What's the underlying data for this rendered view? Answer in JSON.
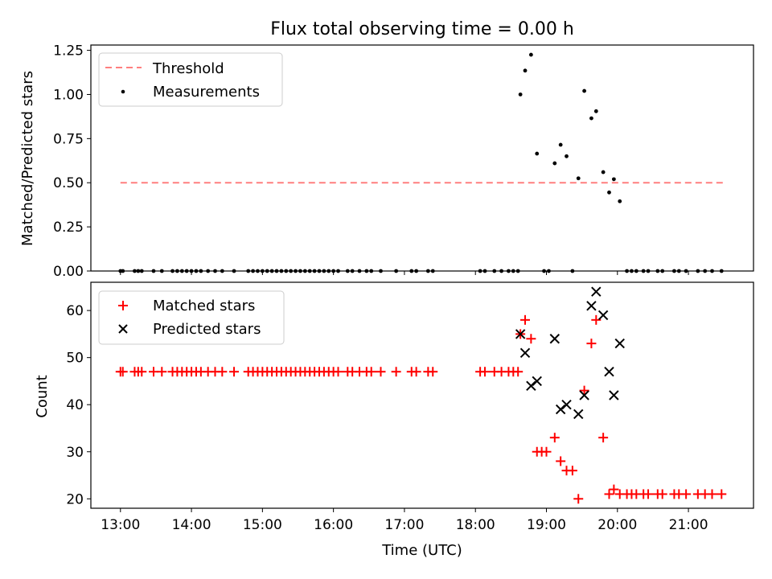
{
  "title": "Flux total observing time = 0.00 h",
  "chart_data": [
    {
      "type": "scatter",
      "panel": "top",
      "ylabel": "Matched/Predicted stars",
      "ylim": [
        0,
        1.28
      ],
      "yticks": [
        0.0,
        0.25,
        0.5,
        0.75,
        1.0,
        1.25
      ],
      "ytick_labels": [
        "0.00",
        "0.25",
        "0.50",
        "0.75",
        "1.00",
        "1.25"
      ],
      "legend_position": "upper-left",
      "threshold": {
        "name": "Threshold",
        "value": 0.5,
        "x_range": [
          "13:00",
          "21:30"
        ],
        "color": "#ff7f7f",
        "style": "dashed"
      },
      "series": [
        {
          "name": "Measurements",
          "color": "#000000",
          "marker": "dot",
          "points": [
            [
              "13:00",
              0
            ],
            [
              "13:02",
              0
            ],
            [
              "13:12",
              0
            ],
            [
              "13:15",
              0
            ],
            [
              "13:18",
              0
            ],
            [
              "13:28",
              0
            ],
            [
              "13:35",
              0
            ],
            [
              "13:44",
              0
            ],
            [
              "13:48",
              0
            ],
            [
              "13:52",
              0
            ],
            [
              "13:56",
              0
            ],
            [
              "14:00",
              0
            ],
            [
              "14:04",
              0
            ],
            [
              "14:08",
              0
            ],
            [
              "14:14",
              0
            ],
            [
              "14:20",
              0
            ],
            [
              "14:26",
              0
            ],
            [
              "14:36",
              0
            ],
            [
              "14:48",
              0
            ],
            [
              "14:52",
              0
            ],
            [
              "14:56",
              0
            ],
            [
              "15:00",
              0
            ],
            [
              "15:04",
              0
            ],
            [
              "15:08",
              0
            ],
            [
              "15:12",
              0
            ],
            [
              "15:16",
              0
            ],
            [
              "15:20",
              0
            ],
            [
              "15:24",
              0
            ],
            [
              "15:28",
              0
            ],
            [
              "15:32",
              0
            ],
            [
              "15:36",
              0
            ],
            [
              "15:40",
              0
            ],
            [
              "15:44",
              0
            ],
            [
              "15:48",
              0
            ],
            [
              "15:52",
              0
            ],
            [
              "15:56",
              0
            ],
            [
              "16:00",
              0
            ],
            [
              "16:04",
              0
            ],
            [
              "16:12",
              0
            ],
            [
              "16:16",
              0
            ],
            [
              "16:22",
              0
            ],
            [
              "16:28",
              0
            ],
            [
              "16:32",
              0
            ],
            [
              "16:40",
              0
            ],
            [
              "16:53",
              0
            ],
            [
              "17:06",
              0
            ],
            [
              "17:10",
              0
            ],
            [
              "17:20",
              0
            ],
            [
              "17:24",
              0
            ],
            [
              "18:04",
              0
            ],
            [
              "18:08",
              0
            ],
            [
              "18:16",
              0
            ],
            [
              "18:22",
              0
            ],
            [
              "18:28",
              0
            ],
            [
              "18:32",
              0
            ],
            [
              "18:36",
              0
            ],
            [
              "18:58",
              0
            ],
            [
              "19:02",
              0
            ],
            [
              "19:22",
              0
            ],
            [
              "18:38",
              1.0
            ],
            [
              "18:42",
              1.135
            ],
            [
              "18:47",
              1.225
            ],
            [
              "18:52",
              0.665
            ],
            [
              "19:07",
              0.61
            ],
            [
              "19:12",
              0.715
            ],
            [
              "19:17",
              0.65
            ],
            [
              "19:27",
              0.525
            ],
            [
              "19:32",
              1.02
            ],
            [
              "19:38",
              0.865
            ],
            [
              "19:42",
              0.905
            ],
            [
              "19:48",
              0.56
            ],
            [
              "19:53",
              0.445
            ],
            [
              "19:57",
              0.52
            ],
            [
              "20:02",
              0.395
            ],
            [
              "20:08",
              0
            ],
            [
              "20:12",
              0
            ],
            [
              "20:16",
              0
            ],
            [
              "20:22",
              0
            ],
            [
              "20:26",
              0
            ],
            [
              "20:34",
              0
            ],
            [
              "20:38",
              0
            ],
            [
              "20:48",
              0
            ],
            [
              "20:52",
              0
            ],
            [
              "20:58",
              0
            ],
            [
              "21:08",
              0
            ],
            [
              "21:14",
              0
            ],
            [
              "21:20",
              0
            ],
            [
              "21:28",
              0
            ]
          ]
        }
      ]
    },
    {
      "type": "scatter",
      "panel": "bottom",
      "xlabel": "Time (UTC)",
      "ylabel": "Count",
      "ylim": [
        18,
        66
      ],
      "yticks": [
        20,
        30,
        40,
        50,
        60
      ],
      "xlim": [
        "12:35",
        "21:55"
      ],
      "xticks": [
        "13:00",
        "14:00",
        "15:00",
        "16:00",
        "17:00",
        "18:00",
        "19:00",
        "20:00",
        "21:00"
      ],
      "legend_position": "upper-left",
      "series": [
        {
          "name": "Matched stars",
          "color": "#ff0000",
          "marker": "plus",
          "points": [
            [
              "13:00",
              47
            ],
            [
              "13:02",
              47
            ],
            [
              "13:12",
              47
            ],
            [
              "13:15",
              47
            ],
            [
              "13:18",
              47
            ],
            [
              "13:28",
              47
            ],
            [
              "13:35",
              47
            ],
            [
              "13:44",
              47
            ],
            [
              "13:48",
              47
            ],
            [
              "13:52",
              47
            ],
            [
              "13:56",
              47
            ],
            [
              "14:00",
              47
            ],
            [
              "14:04",
              47
            ],
            [
              "14:08",
              47
            ],
            [
              "14:14",
              47
            ],
            [
              "14:20",
              47
            ],
            [
              "14:26",
              47
            ],
            [
              "14:36",
              47
            ],
            [
              "14:48",
              47
            ],
            [
              "14:52",
              47
            ],
            [
              "14:56",
              47
            ],
            [
              "15:00",
              47
            ],
            [
              "15:04",
              47
            ],
            [
              "15:08",
              47
            ],
            [
              "15:12",
              47
            ],
            [
              "15:16",
              47
            ],
            [
              "15:20",
              47
            ],
            [
              "15:24",
              47
            ],
            [
              "15:28",
              47
            ],
            [
              "15:32",
              47
            ],
            [
              "15:36",
              47
            ],
            [
              "15:40",
              47
            ],
            [
              "15:44",
              47
            ],
            [
              "15:48",
              47
            ],
            [
              "15:52",
              47
            ],
            [
              "15:56",
              47
            ],
            [
              "16:00",
              47
            ],
            [
              "16:04",
              47
            ],
            [
              "16:12",
              47
            ],
            [
              "16:16",
              47
            ],
            [
              "16:22",
              47
            ],
            [
              "16:28",
              47
            ],
            [
              "16:32",
              47
            ],
            [
              "16:40",
              47
            ],
            [
              "16:53",
              47
            ],
            [
              "17:06",
              47
            ],
            [
              "17:10",
              47
            ],
            [
              "17:20",
              47
            ],
            [
              "17:24",
              47
            ],
            [
              "18:04",
              47
            ],
            [
              "18:08",
              47
            ],
            [
              "18:16",
              47
            ],
            [
              "18:22",
              47
            ],
            [
              "18:28",
              47
            ],
            [
              "18:32",
              47
            ],
            [
              "18:36",
              47
            ],
            [
              "18:38",
              55
            ],
            [
              "18:42",
              58
            ],
            [
              "18:47",
              54
            ],
            [
              "18:52",
              30
            ],
            [
              "18:56",
              30
            ],
            [
              "19:00",
              30
            ],
            [
              "19:07",
              33
            ],
            [
              "19:12",
              28
            ],
            [
              "19:17",
              26
            ],
            [
              "19:22",
              26
            ],
            [
              "19:27",
              20
            ],
            [
              "19:32",
              43
            ],
            [
              "19:38",
              53
            ],
            [
              "19:42",
              58
            ],
            [
              "19:48",
              33
            ],
            [
              "19:53",
              21
            ],
            [
              "19:57",
              22
            ],
            [
              "20:02",
              21
            ],
            [
              "20:08",
              21
            ],
            [
              "20:12",
              21
            ],
            [
              "20:16",
              21
            ],
            [
              "20:22",
              21
            ],
            [
              "20:26",
              21
            ],
            [
              "20:34",
              21
            ],
            [
              "20:38",
              21
            ],
            [
              "20:48",
              21
            ],
            [
              "20:52",
              21
            ],
            [
              "20:58",
              21
            ],
            [
              "21:08",
              21
            ],
            [
              "21:14",
              21
            ],
            [
              "21:20",
              21
            ],
            [
              "21:28",
              21
            ]
          ]
        },
        {
          "name": "Predicted stars",
          "color": "#000000",
          "marker": "x",
          "points": [
            [
              "18:38",
              55
            ],
            [
              "18:42",
              51
            ],
            [
              "18:47",
              44
            ],
            [
              "18:52",
              45
            ],
            [
              "19:07",
              54
            ],
            [
              "19:12",
              39
            ],
            [
              "19:17",
              40
            ],
            [
              "19:27",
              38
            ],
            [
              "19:32",
              42
            ],
            [
              "19:38",
              61
            ],
            [
              "19:42",
              64
            ],
            [
              "19:48",
              59
            ],
            [
              "19:53",
              47
            ],
            [
              "19:57",
              42
            ],
            [
              "20:02",
              53
            ]
          ]
        }
      ]
    }
  ]
}
